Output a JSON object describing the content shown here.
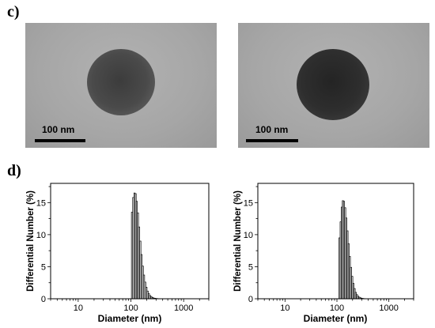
{
  "panels": {
    "c_label": "c)",
    "d_label": "d)"
  },
  "tem_images": [
    {
      "scale_label": "100 nm"
    },
    {
      "scale_label": "100 nm"
    }
  ],
  "chart_data": [
    {
      "type": "bar",
      "title": "",
      "xlabel": "Diameter (nm)",
      "ylabel": "Differential Number (%)",
      "x_scale": "log",
      "xlim": [
        3,
        3000
      ],
      "ylim": [
        0,
        18
      ],
      "x_ticks": [
        10,
        100,
        1000
      ],
      "x_tick_labels": [
        "10",
        "100",
        "1000"
      ],
      "y_ticks": [
        0,
        5,
        10,
        15
      ],
      "y_tick_labels": [
        "0",
        "5",
        "10",
        "15"
      ],
      "grid": false,
      "x": [
        105,
        111,
        117,
        123,
        129,
        136,
        143,
        151,
        159,
        168,
        177,
        187,
        197,
        208,
        219,
        231,
        244,
        257,
        271,
        286,
        301,
        318,
        335
      ],
      "values": [
        13.5,
        15.8,
        16.5,
        16.4,
        15.2,
        13.4,
        11.2,
        9.0,
        6.9,
        5.1,
        3.7,
        2.6,
        1.8,
        1.2,
        0.8,
        0.5,
        0.35,
        0.2,
        0.12,
        0.08,
        0.05,
        0.03,
        0.02
      ]
    },
    {
      "type": "bar",
      "title": "",
      "xlabel": "Diameter (nm)",
      "ylabel": "Differential Number (%)",
      "x_scale": "log",
      "xlim": [
        3,
        3000
      ],
      "ylim": [
        0,
        18
      ],
      "x_ticks": [
        10,
        100,
        1000
      ],
      "x_tick_labels": [
        "10",
        "100",
        "1000"
      ],
      "y_ticks": [
        0,
        5,
        10,
        15
      ],
      "y_tick_labels": [
        "0",
        "5",
        "10",
        "15"
      ],
      "grid": false,
      "x": [
        112,
        118,
        124,
        130,
        137,
        144,
        152,
        160,
        168,
        177,
        187,
        197,
        208,
        219,
        231,
        243,
        256,
        270,
        284,
        300,
        316,
        333,
        350
      ],
      "values": [
        9.5,
        12.0,
        14.3,
        15.3,
        15.2,
        14.2,
        12.6,
        10.6,
        8.6,
        6.6,
        4.9,
        3.5,
        2.4,
        1.6,
        1.0,
        0.65,
        0.4,
        0.25,
        0.15,
        0.09,
        0.05,
        0.03,
        0.02
      ]
    }
  ]
}
